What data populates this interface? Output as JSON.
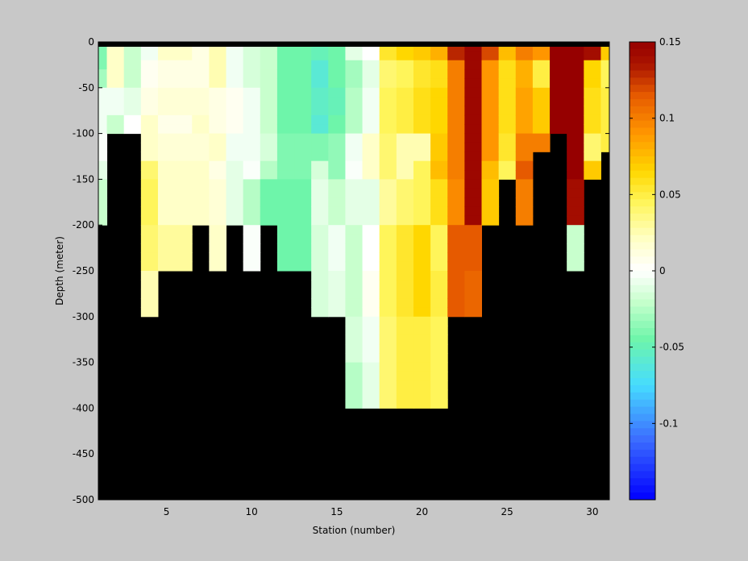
{
  "chart_data": {
    "type": "heatmap",
    "title": "",
    "xlabel": "Station (number)",
    "ylabel": "Depth (meter)",
    "xlim": [
      1,
      31
    ],
    "ylim": [
      -500,
      0
    ],
    "x_ticks": [
      5,
      10,
      15,
      20,
      25,
      30
    ],
    "y_ticks": [
      0,
      -50,
      -100,
      -150,
      -200,
      -250,
      -300,
      -350,
      -400,
      -450,
      -500
    ],
    "colorbar": {
      "range": [
        -0.15,
        0.15
      ],
      "ticks": [
        0.15,
        0.1,
        0.05,
        0,
        -0.05,
        -0.1
      ],
      "tick_labels": [
        "0.15",
        "0.1",
        "0.05",
        "0",
        "-0.05",
        "-0.1"
      ],
      "colormap": "jet-white-center"
    },
    "mask_color": "#000000",
    "stations": [
      1,
      2,
      3,
      4,
      5,
      6,
      7,
      8,
      9,
      10,
      11,
      12,
      13,
      14,
      15,
      16,
      17,
      18,
      19,
      20,
      21,
      22,
      23,
      24,
      25,
      26,
      27,
      28,
      29,
      30,
      31
    ],
    "depth_rows": [
      0,
      -10,
      -20,
      -30,
      -40,
      -50,
      -60,
      -70,
      -80,
      -90,
      -100,
      -110,
      -120,
      -130,
      -140,
      -150,
      -160,
      -170,
      -180,
      -190,
      -200,
      -210,
      -220,
      -230,
      -240,
      -250,
      -260,
      -270,
      -280,
      -290,
      -300,
      -310,
      -320,
      -330,
      -340,
      -350,
      -360,
      -370,
      -380,
      -390,
      -400,
      -410,
      -420,
      -430,
      -440,
      -450,
      -460,
      -470,
      -480,
      -490
    ],
    "profiles": [
      {
        "station": 1,
        "bottom": -200,
        "values": [
          -0.04,
          -0.04,
          -0.04,
          -0.03,
          -0.03,
          -0.005,
          -0.005,
          -0.005,
          -0.005,
          -0.005,
          -0.002,
          -0.002,
          -0.002,
          -0.01,
          -0.01,
          -0.02,
          -0.02,
          -0.02,
          -0.02,
          -0.02
        ]
      },
      {
        "station": 2,
        "bottom": -100,
        "values": [
          0.02,
          0.02,
          0.02,
          0.02,
          0.02,
          -0.005,
          -0.005,
          -0.005,
          -0.02,
          -0.02
        ]
      },
      {
        "station": 3,
        "bottom": -100,
        "values": [
          -0.02,
          -0.02,
          -0.02,
          -0.02,
          -0.02,
          -0.01,
          -0.01,
          -0.01,
          0.0,
          0.0
        ]
      },
      {
        "station": 4,
        "bottom": -300,
        "values": [
          -0.005,
          -0.005,
          0.005,
          0.005,
          0.005,
          0.01,
          0.01,
          0.01,
          0.02,
          0.02,
          0.02,
          0.02,
          0.02,
          0.04,
          0.04,
          0.045,
          0.045,
          0.045,
          0.045,
          0.045,
          0.04,
          0.04,
          0.04,
          0.04,
          0.04,
          0.025,
          0.025,
          0.025,
          0.025,
          0.025
        ]
      },
      {
        "station": 5,
        "bottom": -250,
        "values": [
          0.02,
          0.02,
          0.01,
          0.01,
          0.01,
          0.015,
          0.015,
          0.015,
          0.008,
          0.008,
          0.015,
          0.015,
          0.015,
          0.02,
          0.02,
          0.02,
          0.02,
          0.02,
          0.02,
          0.02,
          0.03,
          0.03,
          0.03,
          0.03,
          0.03
        ]
      },
      {
        "station": 6,
        "bottom": -250,
        "values": [
          0.02,
          0.02,
          0.01,
          0.01,
          0.01,
          0.015,
          0.015,
          0.015,
          0.008,
          0.008,
          0.015,
          0.015,
          0.015,
          0.02,
          0.02,
          0.02,
          0.02,
          0.02,
          0.02,
          0.02,
          0.03,
          0.03,
          0.03,
          0.03,
          0.03
        ]
      },
      {
        "station": 7,
        "bottom": -200,
        "values": [
          0.01,
          0.01,
          0.01,
          0.01,
          0.01,
          0.015,
          0.015,
          0.015,
          0.02,
          0.02,
          0.015,
          0.015,
          0.015,
          0.02,
          0.02,
          0.02,
          0.02,
          0.02,
          0.02,
          0.02
        ]
      },
      {
        "station": 8,
        "bottom": -250,
        "values": [
          0.025,
          0.025,
          0.025,
          0.025,
          0.025,
          0.01,
          0.01,
          0.01,
          0.01,
          0.01,
          0.02,
          0.02,
          0.02,
          0.01,
          0.01,
          0.015,
          0.015,
          0.015,
          0.015,
          0.015,
          0.02,
          0.02,
          0.02,
          0.02,
          0.02
        ]
      },
      {
        "station": 9,
        "bottom": -200,
        "values": [
          -0.005,
          -0.005,
          -0.005,
          -0.005,
          -0.005,
          0.005,
          0.005,
          0.005,
          0.005,
          0.005,
          -0.005,
          -0.005,
          -0.005,
          -0.01,
          -0.01,
          -0.01,
          -0.01,
          -0.01,
          -0.01,
          -0.01
        ]
      },
      {
        "station": 10,
        "bottom": -250,
        "values": [
          -0.015,
          -0.015,
          -0.015,
          -0.015,
          -0.015,
          -0.005,
          -0.005,
          -0.005,
          -0.005,
          -0.005,
          -0.005,
          -0.005,
          -0.005,
          -0.002,
          -0.002,
          -0.025,
          -0.025,
          -0.025,
          -0.025,
          -0.025,
          -0.002,
          -0.002,
          -0.002,
          -0.002,
          -0.002
        ]
      },
      {
        "station": 11,
        "bottom": -200,
        "values": [
          -0.02,
          -0.02,
          -0.02,
          -0.02,
          -0.02,
          -0.02,
          -0.02,
          -0.02,
          -0.02,
          -0.02,
          -0.015,
          -0.015,
          -0.015,
          -0.025,
          -0.025,
          -0.045,
          -0.045,
          -0.045,
          -0.045,
          -0.045
        ]
      },
      {
        "station": 12,
        "bottom": -250,
        "values": [
          -0.045,
          -0.045,
          -0.045,
          -0.045,
          -0.045,
          -0.045,
          -0.045,
          -0.045,
          -0.045,
          -0.045,
          -0.04,
          -0.04,
          -0.04,
          -0.04,
          -0.04,
          -0.045,
          -0.045,
          -0.045,
          -0.045,
          -0.045,
          -0.045,
          -0.045,
          -0.045,
          -0.045,
          -0.045
        ]
      },
      {
        "station": 13,
        "bottom": -250,
        "values": [
          -0.045,
          -0.045,
          -0.045,
          -0.045,
          -0.045,
          -0.045,
          -0.045,
          -0.045,
          -0.045,
          -0.045,
          -0.04,
          -0.04,
          -0.04,
          -0.04,
          -0.04,
          -0.045,
          -0.045,
          -0.045,
          -0.045,
          -0.045,
          -0.045,
          -0.045,
          -0.045,
          -0.045,
          -0.045
        ]
      },
      {
        "station": 14,
        "bottom": -300,
        "values": [
          -0.05,
          -0.05,
          -0.06,
          -0.06,
          -0.06,
          -0.055,
          -0.055,
          -0.055,
          -0.06,
          -0.06,
          -0.04,
          -0.04,
          -0.04,
          -0.015,
          -0.015,
          -0.01,
          -0.01,
          -0.01,
          -0.01,
          -0.01,
          -0.015,
          -0.015,
          -0.015,
          -0.015,
          -0.015,
          -0.015,
          -0.015,
          -0.015,
          -0.015,
          -0.015
        ]
      },
      {
        "station": 15,
        "bottom": -300,
        "values": [
          -0.045,
          -0.045,
          -0.045,
          -0.045,
          -0.045,
          -0.05,
          -0.05,
          -0.05,
          -0.045,
          -0.045,
          -0.035,
          -0.035,
          -0.035,
          -0.035,
          -0.035,
          -0.02,
          -0.02,
          -0.02,
          -0.02,
          -0.02,
          -0.005,
          -0.005,
          -0.005,
          -0.005,
          -0.005,
          -0.01,
          -0.01,
          -0.01,
          -0.01,
          -0.01
        ]
      },
      {
        "station": 16,
        "bottom": -400,
        "values": [
          -0.01,
          -0.01,
          -0.03,
          -0.03,
          -0.03,
          -0.025,
          -0.025,
          -0.025,
          -0.025,
          -0.025,
          -0.005,
          -0.005,
          -0.005,
          -0.002,
          -0.002,
          -0.01,
          -0.01,
          -0.01,
          -0.01,
          -0.01,
          -0.02,
          -0.02,
          -0.02,
          -0.02,
          -0.02,
          -0.02,
          -0.02,
          -0.02,
          -0.02,
          -0.02,
          -0.015,
          -0.015,
          -0.015,
          -0.015,
          -0.015,
          -0.025,
          -0.025,
          -0.025,
          -0.025,
          -0.025
        ]
      },
      {
        "station": 17,
        "bottom": -400,
        "values": [
          0.0,
          0.0,
          -0.01,
          -0.01,
          -0.01,
          -0.005,
          -0.005,
          -0.005,
          -0.005,
          -0.005,
          0.02,
          0.02,
          0.02,
          0.02,
          0.02,
          -0.01,
          -0.01,
          -0.01,
          -0.01,
          -0.01,
          0.0,
          0.0,
          0.0,
          0.0,
          0.0,
          0.005,
          0.005,
          0.005,
          0.005,
          0.005,
          -0.005,
          -0.005,
          -0.005,
          -0.005,
          -0.005,
          -0.01,
          -0.01,
          -0.01,
          -0.01,
          -0.01
        ]
      },
      {
        "station": 18,
        "bottom": -400,
        "values": [
          0.055,
          0.055,
          0.04,
          0.04,
          0.04,
          0.045,
          0.045,
          0.045,
          0.045,
          0.045,
          0.04,
          0.04,
          0.04,
          0.04,
          0.04,
          0.03,
          0.03,
          0.03,
          0.03,
          0.03,
          0.045,
          0.045,
          0.045,
          0.045,
          0.045,
          0.045,
          0.045,
          0.045,
          0.045,
          0.045,
          0.04,
          0.04,
          0.04,
          0.04,
          0.04,
          0.04,
          0.04,
          0.04,
          0.04,
          0.04
        ]
      },
      {
        "station": 19,
        "bottom": -400,
        "values": [
          0.065,
          0.065,
          0.045,
          0.045,
          0.045,
          0.05,
          0.05,
          0.05,
          0.05,
          0.05,
          0.025,
          0.025,
          0.025,
          0.025,
          0.025,
          0.04,
          0.04,
          0.04,
          0.04,
          0.04,
          0.055,
          0.055,
          0.055,
          0.055,
          0.055,
          0.055,
          0.055,
          0.055,
          0.055,
          0.055,
          0.05,
          0.05,
          0.05,
          0.05,
          0.05,
          0.05,
          0.05,
          0.05,
          0.05,
          0.05
        ]
      },
      {
        "station": 20,
        "bottom": -400,
        "values": [
          0.07,
          0.07,
          0.055,
          0.055,
          0.055,
          0.06,
          0.06,
          0.06,
          0.06,
          0.06,
          0.025,
          0.025,
          0.025,
          0.045,
          0.045,
          0.045,
          0.045,
          0.045,
          0.045,
          0.045,
          0.065,
          0.065,
          0.065,
          0.065,
          0.065,
          0.065,
          0.065,
          0.065,
          0.065,
          0.065,
          0.05,
          0.05,
          0.05,
          0.05,
          0.05,
          0.05,
          0.05,
          0.05,
          0.05,
          0.05
        ]
      },
      {
        "station": 21,
        "bottom": -400,
        "values": [
          0.08,
          0.08,
          0.06,
          0.06,
          0.06,
          0.065,
          0.065,
          0.065,
          0.065,
          0.065,
          0.07,
          0.07,
          0.07,
          0.075,
          0.075,
          0.06,
          0.06,
          0.06,
          0.06,
          0.06,
          0.045,
          0.045,
          0.045,
          0.045,
          0.045,
          0.05,
          0.05,
          0.05,
          0.05,
          0.05,
          0.045,
          0.045,
          0.045,
          0.045,
          0.045,
          0.045,
          0.045,
          0.045,
          0.045,
          0.045
        ]
      },
      {
        "station": 22,
        "bottom": -300,
        "values": [
          0.13,
          0.13,
          0.1,
          0.1,
          0.1,
          0.1,
          0.1,
          0.1,
          0.1,
          0.1,
          0.1,
          0.1,
          0.1,
          0.1,
          0.1,
          0.095,
          0.095,
          0.095,
          0.095,
          0.095,
          0.115,
          0.115,
          0.115,
          0.115,
          0.115,
          0.115,
          0.115,
          0.115,
          0.115,
          0.115
        ]
      },
      {
        "station": 23,
        "bottom": -300,
        "values": [
          0.145,
          0.145,
          0.145,
          0.145,
          0.145,
          0.145,
          0.145,
          0.145,
          0.145,
          0.145,
          0.145,
          0.145,
          0.145,
          0.145,
          0.145,
          0.145,
          0.145,
          0.145,
          0.145,
          0.145,
          0.115,
          0.115,
          0.115,
          0.115,
          0.115,
          0.11,
          0.11,
          0.11,
          0.11,
          0.11
        ]
      },
      {
        "station": 24,
        "bottom": -200,
        "values": [
          0.12,
          0.12,
          0.09,
          0.09,
          0.09,
          0.09,
          0.09,
          0.09,
          0.09,
          0.09,
          0.09,
          0.09,
          0.09,
          0.075,
          0.075,
          0.07,
          0.07,
          0.07,
          0.07,
          0.07
        ]
      },
      {
        "station": 25,
        "bottom": -150,
        "values": [
          0.075,
          0.075,
          0.06,
          0.06,
          0.06,
          0.06,
          0.06,
          0.06,
          0.06,
          0.06,
          0.055,
          0.055,
          0.055,
          0.045,
          0.045
        ]
      },
      {
        "station": 26,
        "bottom": -200,
        "values": [
          0.1,
          0.1,
          0.08,
          0.08,
          0.08,
          0.085,
          0.085,
          0.085,
          0.085,
          0.085,
          0.1,
          0.1,
          0.1,
          0.115,
          0.115,
          0.1,
          0.1,
          0.1,
          0.1,
          0.1
        ]
      },
      {
        "station": 27,
        "bottom": -125,
        "values": [
          0.09,
          0.09,
          0.05,
          0.05,
          0.05,
          0.07,
          0.07,
          0.07,
          0.07,
          0.07,
          0.1,
          0.1
        ]
      },
      {
        "station": 28,
        "bottom": -100,
        "values": [
          0.15,
          0.15,
          0.15,
          0.15,
          0.15,
          0.15,
          0.15,
          0.15,
          0.15,
          0.15
        ]
      },
      {
        "station": 29,
        "bottom": -250,
        "values": [
          0.15,
          0.15,
          0.15,
          0.15,
          0.15,
          0.15,
          0.15,
          0.15,
          0.15,
          0.15,
          0.15,
          0.15,
          0.15,
          0.15,
          0.15,
          0.14,
          0.14,
          0.14,
          0.14,
          0.14,
          -0.02,
          -0.02,
          -0.02,
          -0.02,
          -0.02
        ]
      },
      {
        "station": 30,
        "bottom": -150,
        "values": [
          0.14,
          0.14,
          0.065,
          0.065,
          0.065,
          0.06,
          0.06,
          0.06,
          0.06,
          0.06,
          0.04,
          0.04,
          0.04,
          0.07,
          0.07
        ]
      },
      {
        "station": 31,
        "bottom": -125,
        "values": [
          0.07,
          0.07,
          0.045,
          0.045,
          0.045,
          0.05,
          0.05,
          0.05,
          0.05,
          0.05,
          0.05,
          0.05
        ]
      }
    ]
  }
}
